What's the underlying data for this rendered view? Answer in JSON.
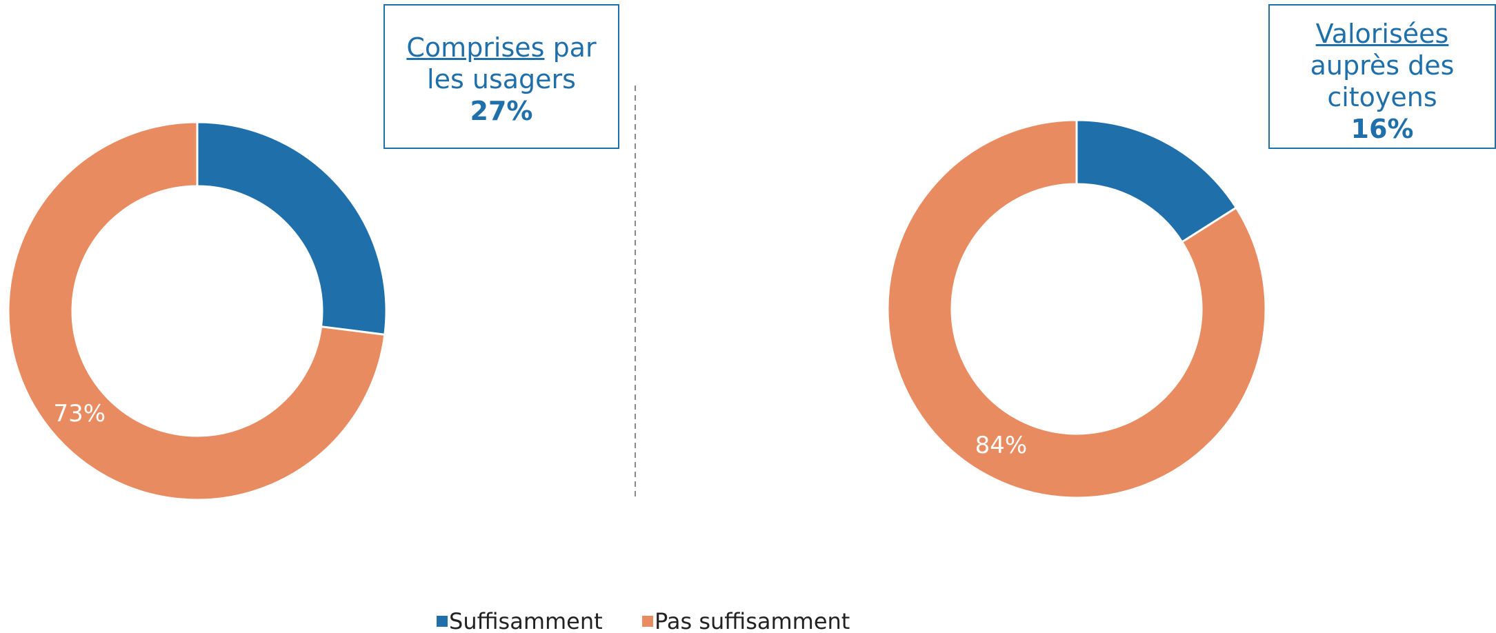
{
  "chart_data": [
    {
      "type": "pie",
      "title": [
        "Comprises",
        "par les usagers"
      ],
      "categories": [
        "Suffisamment",
        "Pas suffisamment"
      ],
      "values": [
        27,
        73
      ],
      "value_labels": [
        "27%",
        "73%"
      ],
      "colors": [
        "#1f6fab",
        "#e98b60"
      ],
      "donut": true
    },
    {
      "type": "pie",
      "title": [
        "Valorisées",
        "auprès des citoyens"
      ],
      "categories": [
        "Suffisamment",
        "Pas suffisamment"
      ],
      "values": [
        16,
        84
      ],
      "value_labels": [
        "16%",
        "84%"
      ],
      "colors": [
        "#1f6fab",
        "#e98b60"
      ],
      "donut": true
    }
  ]
}
